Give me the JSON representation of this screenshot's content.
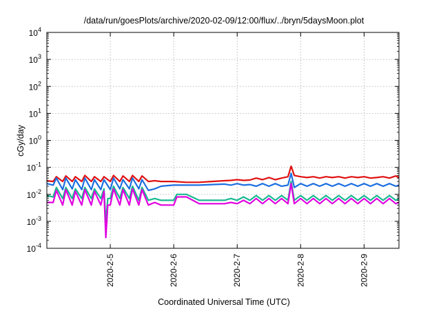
{
  "chart_data": {
    "type": "line",
    "title": "/data/run/goesPlots/archive/2020-02-09/12:00/flux/../bryn/5daysMoon.plot",
    "xlabel": "Coordinated Universal Time (UTC)",
    "ylabel": "cGy/day",
    "yscale": "log",
    "ylim": [
      0.0001,
      10000
    ],
    "xlim": [
      4.0,
      9.55
    ],
    "grid": true,
    "legend": "none",
    "x_ticks": [
      {
        "value": 5,
        "label": "2020-2-5"
      },
      {
        "value": 6,
        "label": "2020-2-6"
      },
      {
        "value": 7,
        "label": "2020-2-7"
      },
      {
        "value": 8,
        "label": "2020-2-8"
      },
      {
        "value": 9,
        "label": "2020-2-9"
      }
    ],
    "y_ticks": [
      {
        "value": 0.0001,
        "base": "10",
        "exp": "-4"
      },
      {
        "value": 0.001,
        "base": "10",
        "exp": "-3"
      },
      {
        "value": 0.01,
        "base": "10",
        "exp": "-2"
      },
      {
        "value": 0.1,
        "base": "10",
        "exp": "-1"
      },
      {
        "value": 1,
        "base": "10",
        "exp": "0"
      },
      {
        "value": 10,
        "base": "10",
        "exp": "1"
      },
      {
        "value": 100,
        "base": "10",
        "exp": "2"
      },
      {
        "value": 1000,
        "base": "10",
        "exp": "3"
      },
      {
        "value": 10000,
        "base": "10",
        "exp": "4"
      }
    ],
    "series": [
      {
        "color": "#e01010",
        "x": [
          4.0,
          4.1,
          4.15,
          4.25,
          4.3,
          4.4,
          4.45,
          4.55,
          4.6,
          4.7,
          4.75,
          4.85,
          4.9,
          5.0,
          5.05,
          5.15,
          5.2,
          5.3,
          5.35,
          5.45,
          5.5,
          5.6,
          5.7,
          5.8,
          5.9,
          6.0,
          6.2,
          6.4,
          6.6,
          6.8,
          6.9,
          7.0,
          7.1,
          7.2,
          7.3,
          7.4,
          7.5,
          7.6,
          7.7,
          7.8,
          7.85,
          7.9,
          8.0,
          8.1,
          8.2,
          8.3,
          8.4,
          8.5,
          8.6,
          8.7,
          8.8,
          8.9,
          9.0,
          9.1,
          9.2,
          9.3,
          9.4,
          9.5,
          9.55
        ],
        "y": [
          0.032,
          0.03,
          0.045,
          0.03,
          0.048,
          0.03,
          0.045,
          0.03,
          0.05,
          0.03,
          0.045,
          0.03,
          0.045,
          0.03,
          0.05,
          0.03,
          0.048,
          0.03,
          0.05,
          0.03,
          0.048,
          0.03,
          0.032,
          0.03,
          0.03,
          0.03,
          0.028,
          0.028,
          0.03,
          0.032,
          0.033,
          0.035,
          0.033,
          0.034,
          0.04,
          0.035,
          0.042,
          0.035,
          0.04,
          0.045,
          0.11,
          0.05,
          0.045,
          0.042,
          0.045,
          0.04,
          0.045,
          0.042,
          0.045,
          0.04,
          0.045,
          0.042,
          0.045,
          0.04,
          0.042,
          0.045,
          0.04,
          0.048,
          0.042
        ]
      },
      {
        "color": "#1c6fe0",
        "x": [
          4.0,
          4.1,
          4.15,
          4.25,
          4.3,
          4.4,
          4.45,
          4.55,
          4.6,
          4.7,
          4.75,
          4.85,
          4.9,
          5.0,
          5.05,
          5.15,
          5.2,
          5.3,
          5.35,
          5.45,
          5.5,
          5.6,
          5.7,
          5.8,
          5.9,
          6.0,
          6.2,
          6.4,
          6.6,
          6.8,
          6.9,
          7.0,
          7.1,
          7.2,
          7.3,
          7.4,
          7.5,
          7.6,
          7.7,
          7.8,
          7.85,
          7.9,
          8.0,
          8.1,
          8.2,
          8.3,
          8.4,
          8.5,
          8.6,
          8.7,
          8.8,
          8.9,
          9.0,
          9.1,
          9.2,
          9.3,
          9.4,
          9.5,
          9.55
        ],
        "y": [
          0.025,
          0.022,
          0.04,
          0.015,
          0.04,
          0.016,
          0.035,
          0.015,
          0.04,
          0.015,
          0.035,
          0.015,
          0.035,
          0.015,
          0.04,
          0.016,
          0.035,
          0.016,
          0.04,
          0.016,
          0.035,
          0.014,
          0.016,
          0.02,
          0.021,
          0.022,
          0.022,
          0.022,
          0.023,
          0.024,
          0.022,
          0.025,
          0.022,
          0.023,
          0.02,
          0.025,
          0.02,
          0.025,
          0.02,
          0.022,
          0.06,
          0.018,
          0.025,
          0.02,
          0.025,
          0.02,
          0.025,
          0.02,
          0.025,
          0.02,
          0.025,
          0.02,
          0.025,
          0.02,
          0.025,
          0.02,
          0.025,
          0.02,
          0.022
        ]
      },
      {
        "color": "#18b890",
        "x": [
          4.0,
          4.1,
          4.15,
          4.25,
          4.3,
          4.4,
          4.45,
          4.55,
          4.6,
          4.7,
          4.75,
          4.85,
          4.9,
          4.93,
          4.96,
          5.0,
          5.05,
          5.15,
          5.2,
          5.3,
          5.35,
          5.45,
          5.5,
          5.6,
          5.7,
          5.8,
          5.9,
          6.0,
          6.05,
          6.2,
          6.4,
          6.6,
          6.8,
          6.9,
          7.0,
          7.1,
          7.2,
          7.3,
          7.4,
          7.5,
          7.6,
          7.7,
          7.8,
          7.85,
          7.9,
          8.0,
          8.1,
          8.2,
          8.3,
          8.4,
          8.5,
          8.6,
          8.7,
          8.8,
          8.9,
          9.0,
          9.1,
          9.2,
          9.3,
          9.4,
          9.5,
          9.55
        ],
        "y": [
          0.009,
          0.008,
          0.018,
          0.007,
          0.018,
          0.007,
          0.016,
          0.007,
          0.018,
          0.007,
          0.016,
          0.007,
          0.016,
          0.0009,
          0.007,
          0.007,
          0.02,
          0.007,
          0.018,
          0.007,
          0.02,
          0.006,
          0.018,
          0.006,
          0.007,
          0.006,
          0.006,
          0.006,
          0.01,
          0.01,
          0.006,
          0.006,
          0.006,
          0.007,
          0.006,
          0.008,
          0.006,
          0.009,
          0.006,
          0.009,
          0.006,
          0.009,
          0.006,
          0.03,
          0.006,
          0.009,
          0.006,
          0.009,
          0.006,
          0.009,
          0.006,
          0.009,
          0.006,
          0.009,
          0.006,
          0.009,
          0.006,
          0.009,
          0.006,
          0.009,
          0.006,
          0.007
        ]
      },
      {
        "color": "#e000e0",
        "x": [
          4.0,
          4.1,
          4.15,
          4.25,
          4.3,
          4.4,
          4.45,
          4.55,
          4.6,
          4.7,
          4.75,
          4.85,
          4.9,
          4.93,
          4.96,
          5.0,
          5.05,
          5.15,
          5.2,
          5.3,
          5.35,
          5.45,
          5.5,
          5.6,
          5.7,
          5.8,
          5.9,
          6.0,
          6.05,
          6.2,
          6.4,
          6.6,
          6.8,
          6.9,
          7.0,
          7.1,
          7.2,
          7.3,
          7.4,
          7.5,
          7.6,
          7.7,
          7.8,
          7.85,
          7.9,
          8.0,
          8.1,
          8.2,
          8.3,
          8.4,
          8.5,
          8.6,
          8.7,
          8.8,
          8.9,
          9.0,
          9.1,
          9.2,
          9.3,
          9.4,
          9.5,
          9.55
        ],
        "y": [
          0.005,
          0.005,
          0.014,
          0.004,
          0.015,
          0.004,
          0.013,
          0.004,
          0.015,
          0.004,
          0.013,
          0.004,
          0.013,
          0.00025,
          0.004,
          0.004,
          0.016,
          0.004,
          0.015,
          0.004,
          0.016,
          0.004,
          0.015,
          0.004,
          0.005,
          0.004,
          0.004,
          0.004,
          0.008,
          0.008,
          0.0045,
          0.0045,
          0.0045,
          0.005,
          0.0045,
          0.006,
          0.0045,
          0.007,
          0.0045,
          0.007,
          0.0045,
          0.007,
          0.0045,
          0.025,
          0.0045,
          0.007,
          0.0045,
          0.007,
          0.0045,
          0.007,
          0.0045,
          0.007,
          0.0045,
          0.007,
          0.0045,
          0.007,
          0.0045,
          0.007,
          0.0045,
          0.007,
          0.0045,
          0.005
        ]
      }
    ]
  }
}
